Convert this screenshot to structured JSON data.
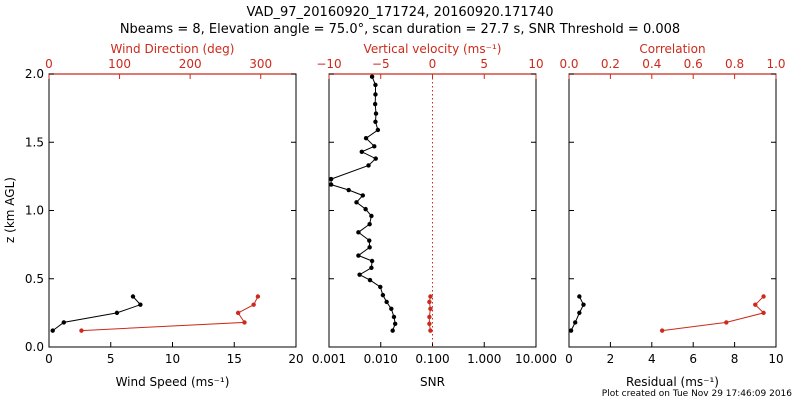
{
  "title_line1": "VAD_97_20160920_171724, 20160920.171740",
  "title_line2": "Nbeams = 8, Elevation angle = 75.0°, scan duration = 27.7 s, SNR Threshold = 0.008",
  "footer": "Plot created on Tue Nov 29 17:46:09 2016",
  "colors": {
    "black": "#000000",
    "red": "#cc2a1c"
  },
  "chart_data": [
    {
      "type": "line",
      "xlabel_bottom": "Wind Speed (ms⁻¹)",
      "xlabel_top": "Wind Direction (deg)",
      "ylabel": "z (km AGL)",
      "x_bottom_range": [
        0,
        20
      ],
      "x_bottom_ticks": [
        "0",
        "5",
        "10",
        "15",
        "20"
      ],
      "x_top_range": [
        0,
        350
      ],
      "x_top_ticks": [
        "0",
        "100",
        "200",
        "300"
      ],
      "y_range": [
        0,
        2
      ],
      "y_ticks": [
        "0.0",
        "0.5",
        "1.0",
        "1.5",
        "2.0"
      ],
      "series": [
        {
          "axis": "bottom",
          "color": "#000000",
          "points": [
            [
              0.3,
              0.12
            ],
            [
              1.2,
              0.18
            ],
            [
              5.5,
              0.25
            ],
            [
              7.4,
              0.31
            ],
            [
              6.8,
              0.37
            ]
          ]
        },
        {
          "axis": "top",
          "color": "#cc2a1c",
          "points": [
            [
              46,
              0.12
            ],
            [
              277,
              0.18
            ],
            [
              268,
              0.25
            ],
            [
              290,
              0.31
            ],
            [
              296,
              0.37
            ]
          ]
        }
      ]
    },
    {
      "type": "line",
      "xlabel_bottom": "SNR",
      "xlabel_top": "Vertical velocity (ms⁻¹)",
      "x_bottom_scale": "log",
      "x_bottom_range": [
        0.001,
        10
      ],
      "x_bottom_ticks": [
        "0.001",
        "0.010",
        "0.100",
        "1.000",
        "10.000"
      ],
      "x_top_range": [
        -10,
        10
      ],
      "x_top_ticks": [
        "−10",
        "−5",
        "0",
        "5",
        "10"
      ],
      "y_range": [
        0,
        2
      ],
      "reference_line": {
        "axis": "bottom",
        "value": 0.1,
        "style": "dotted",
        "color": "#cc2a1c"
      },
      "series": [
        {
          "axis": "bottom",
          "color": "#000000",
          "points": [
            [
              0.0068,
              1.98
            ],
            [
              0.0079,
              1.92
            ],
            [
              0.0079,
              1.85
            ],
            [
              0.0078,
              1.78
            ],
            [
              0.0081,
              1.71
            ],
            [
              0.0079,
              1.65
            ],
            [
              0.0088,
              1.59
            ],
            [
              0.0052,
              1.53
            ],
            [
              0.0075,
              1.47
            ],
            [
              0.0043,
              1.43
            ],
            [
              0.008,
              1.38
            ],
            [
              0.0058,
              1.33
            ],
            [
              0.0011,
              1.23
            ],
            [
              0.0011,
              1.19
            ],
            [
              0.0024,
              1.15
            ],
            [
              0.0045,
              1.11
            ],
            [
              0.0034,
              1.06
            ],
            [
              0.0051,
              1.01
            ],
            [
              0.0066,
              0.96
            ],
            [
              0.0061,
              0.9
            ],
            [
              0.0037,
              0.84
            ],
            [
              0.006,
              0.78
            ],
            [
              0.0061,
              0.73
            ],
            [
              0.0037,
              0.67
            ],
            [
              0.0068,
              0.63
            ],
            [
              0.0066,
              0.58
            ],
            [
              0.0039,
              0.53
            ],
            [
              0.0062,
              0.49
            ],
            [
              0.0098,
              0.44
            ],
            [
              0.011,
              0.38
            ],
            [
              0.013,
              0.33
            ],
            [
              0.016,
              0.28
            ],
            [
              0.018,
              0.22
            ],
            [
              0.019,
              0.17
            ],
            [
              0.017,
              0.12
            ]
          ]
        },
        {
          "axis": "top",
          "color": "#cc2a1c",
          "points": [
            [
              -0.2,
              0.12
            ],
            [
              -0.3,
              0.17
            ],
            [
              -0.3,
              0.22
            ],
            [
              -0.2,
              0.28
            ],
            [
              -0.3,
              0.33
            ],
            [
              -0.2,
              0.37
            ]
          ]
        }
      ]
    },
    {
      "type": "line",
      "xlabel_bottom": "Residual (ms⁻¹)",
      "xlabel_top": "Correlation",
      "x_bottom_range": [
        0,
        10
      ],
      "x_bottom_ticks": [
        "0",
        "2",
        "4",
        "6",
        "8",
        "10"
      ],
      "x_top_range": [
        0,
        1
      ],
      "x_top_ticks": [
        "0.0",
        "0.2",
        "0.4",
        "0.6",
        "0.8",
        "1.0"
      ],
      "y_range": [
        0,
        2
      ],
      "series": [
        {
          "axis": "bottom",
          "color": "#000000",
          "points": [
            [
              0.1,
              0.12
            ],
            [
              0.3,
              0.18
            ],
            [
              0.5,
              0.25
            ],
            [
              0.7,
              0.31
            ],
            [
              0.5,
              0.37
            ]
          ]
        },
        {
          "axis": "top",
          "color": "#cc2a1c",
          "points": [
            [
              0.45,
              0.12
            ],
            [
              0.76,
              0.18
            ],
            [
              0.94,
              0.25
            ],
            [
              0.9,
              0.31
            ],
            [
              0.94,
              0.37
            ]
          ]
        }
      ]
    }
  ]
}
